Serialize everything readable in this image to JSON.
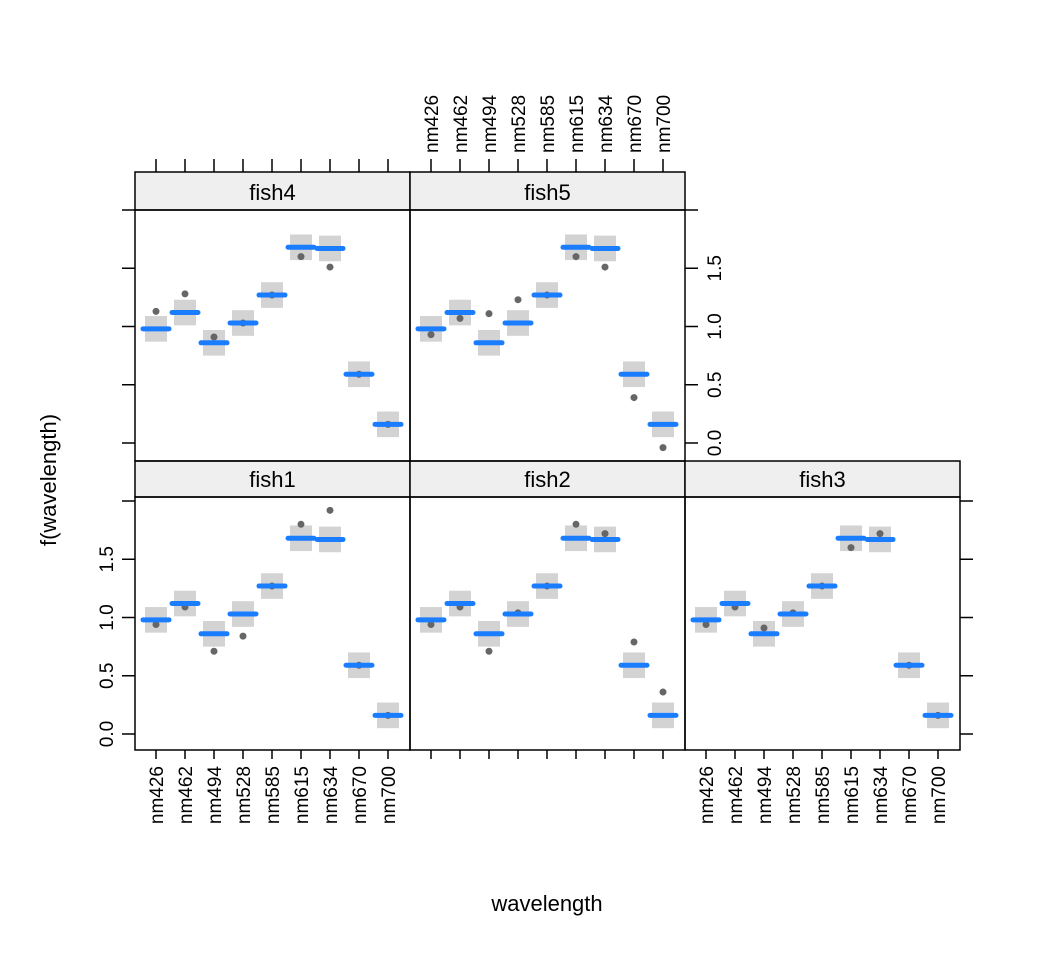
{
  "chart_data": {
    "type": "scatter",
    "xlabel": "wavelength",
    "ylabel": "f(wavelength)",
    "categories": [
      "nm426",
      "nm462",
      "nm494",
      "nm528",
      "nm585",
      "nm615",
      "nm634",
      "nm670",
      "nm700"
    ],
    "yticks": [
      "0.0",
      "0.5",
      "1.0",
      "1.5"
    ],
    "ytick_values": [
      0,
      0.5,
      1.0,
      1.5
    ],
    "ylim": [
      -0.14,
      2.03
    ],
    "colors": {
      "fit": "#1a7dff",
      "band": "#d3d3d3",
      "points": "#666666",
      "strip": "#efefef"
    },
    "fit": [
      0.98,
      1.12,
      0.86,
      1.03,
      1.27,
      1.68,
      1.67,
      0.59,
      0.16
    ],
    "band_halfwidth": 0.11,
    "panels": [
      {
        "name": "fish1",
        "points": [
          0.94,
          1.09,
          0.71,
          0.84,
          1.27,
          1.8,
          1.92,
          0.59,
          0.16
        ]
      },
      {
        "name": "fish2",
        "points": [
          0.94,
          1.09,
          0.71,
          1.04,
          1.27,
          1.8,
          1.72,
          0.79,
          0.36
        ]
      },
      {
        "name": "fish3",
        "points": [
          0.94,
          1.09,
          0.91,
          1.04,
          1.27,
          1.6,
          1.72,
          0.59,
          0.16
        ]
      },
      {
        "name": "fish4",
        "points": [
          1.13,
          1.28,
          0.91,
          1.03,
          1.27,
          1.6,
          1.51,
          0.59,
          0.16
        ]
      },
      {
        "name": "fish5",
        "points": [
          0.93,
          1.07,
          1.11,
          1.23,
          1.27,
          1.6,
          1.51,
          0.39,
          -0.04
        ]
      }
    ]
  }
}
